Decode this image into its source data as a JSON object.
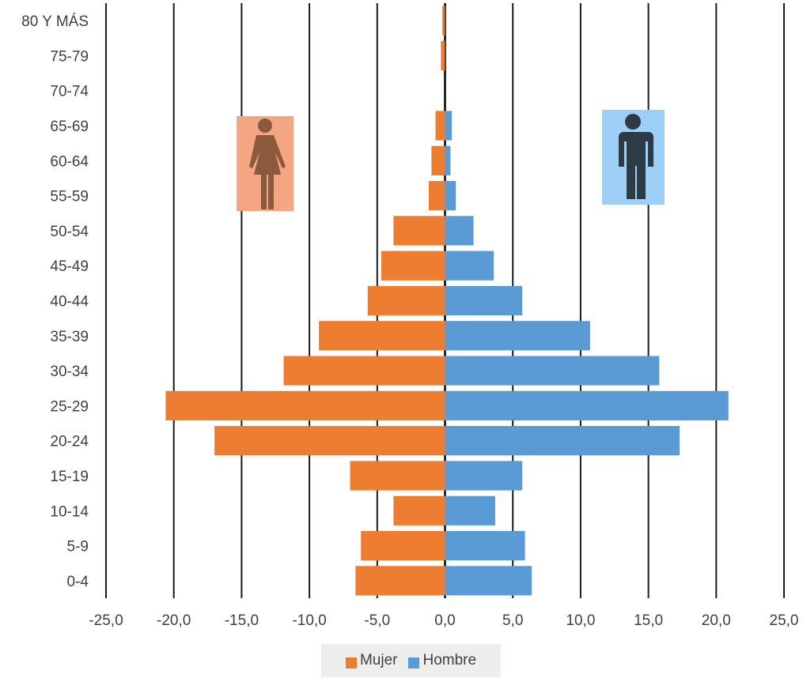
{
  "chart_data": {
    "type": "bar",
    "orientation": "horizontal",
    "categories": [
      "0-4",
      "5-9",
      "10-14",
      "15-19",
      "20-24",
      "25-29",
      "30-34",
      "35-39",
      "40-44",
      "45-49",
      "50-54",
      "55-59",
      "60-64",
      "65-69",
      "70-74",
      "75-79",
      "80 Y MÁS"
    ],
    "series": [
      {
        "name": "Mujer",
        "color": "#ED7D31",
        "values": [
          -6.6,
          -6.2,
          -3.8,
          -7.0,
          -17.0,
          -20.6,
          -11.9,
          -9.3,
          -5.7,
          -4.7,
          -3.8,
          -1.2,
          -1.0,
          -0.7,
          0,
          -0.3,
          -0.2
        ]
      },
      {
        "name": "Hombre",
        "color": "#5B9BD5",
        "values": [
          6.4,
          5.9,
          3.7,
          5.7,
          17.3,
          20.9,
          15.8,
          10.7,
          5.7,
          3.6,
          2.1,
          0.8,
          0.4,
          0.5,
          0,
          0,
          0
        ]
      }
    ],
    "xlim": [
      -25,
      25
    ],
    "xticks": [
      "-25,0",
      "-20,0",
      "-15,0",
      "-10,0",
      "-5,0",
      "0,0",
      "5,0",
      "10,0",
      "15,0",
      "20,0",
      "25,0"
    ],
    "grid": true,
    "legend_position": "bottom",
    "icons": [
      {
        "name": "female-icon",
        "color": "#8B5A3C",
        "background": "#F4A582"
      },
      {
        "name": "male-icon",
        "color": "#2E3B45",
        "background": "#9ECFF7"
      }
    ]
  }
}
